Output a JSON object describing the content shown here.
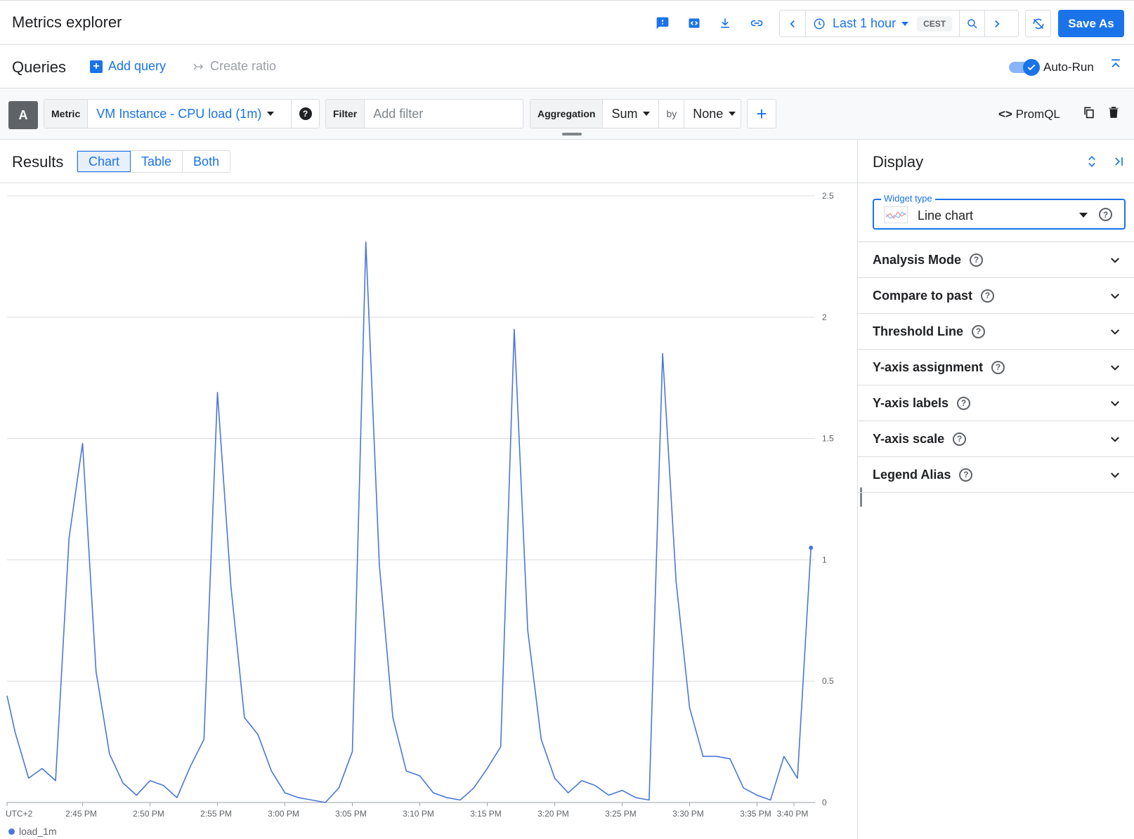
{
  "app": {
    "title": "Metrics explorer"
  },
  "toolbar": {
    "time_range": "Last 1 hour",
    "timezone": "CEST",
    "save_label": "Save As"
  },
  "queries": {
    "title": "Queries",
    "add_query": "Add query",
    "create_ratio": "Create ratio",
    "autorun_label": "Auto-Run",
    "autorun_on": true
  },
  "query": {
    "letter": "A",
    "metric_label": "Metric",
    "metric_value": "VM Instance - CPU load (1m)",
    "help": "?",
    "filter_label": "Filter",
    "filter_placeholder": "Add filter",
    "aggregation_label": "Aggregation",
    "aggregation_value": "Sum",
    "by_label": "by",
    "by_value": "None",
    "promql_label": "PromQL"
  },
  "results": {
    "title": "Results",
    "tabs": [
      "Chart",
      "Table",
      "Both"
    ],
    "active_tab": "Chart"
  },
  "display": {
    "title": "Display",
    "widget_type_label": "Widget type",
    "widget_type_value": "Line chart",
    "sections": [
      "Analysis Mode",
      "Compare to past",
      "Threshold Line",
      "Y-axis assignment",
      "Y-axis labels",
      "Y-axis scale",
      "Legend Alias"
    ]
  },
  "colors": {
    "accent": "#1a73e8",
    "series": "#4a76d9"
  },
  "chart_data": {
    "type": "line",
    "x_tick_labels": [
      "UTC+2",
      "2:45 PM",
      "2:50 PM",
      "2:55 PM",
      "3:00 PM",
      "3:05 PM",
      "3:10 PM",
      "3:15 PM",
      "3:20 PM",
      "3:25 PM",
      "3:30 PM",
      "3:35 PM",
      "3:40 PM"
    ],
    "y_ticks": [
      0,
      0.5,
      1,
      1.5,
      2,
      2.5
    ],
    "ylim": [
      0,
      2.5
    ],
    "xlim": [
      -15.6,
      44.3
    ],
    "y_axis_side": "right",
    "grid": true,
    "legend_placement": "bottom-left",
    "series": [
      {
        "name": "load_1m",
        "x": [
          -15.6,
          -15,
          -14,
          -13,
          -12,
          -11,
          -10,
          -9,
          -8,
          -7,
          -6,
          -5,
          -4,
          -3,
          -2,
          -1,
          0,
          1,
          2,
          3,
          -0.01,
          4,
          5,
          6,
          7,
          8,
          9,
          10,
          11,
          12,
          13,
          14,
          15,
          16,
          17,
          18,
          19,
          20,
          21,
          22,
          23,
          24,
          25,
          26,
          27,
          28,
          29,
          30,
          31,
          32,
          33,
          34,
          35,
          36,
          37,
          38,
          39,
          40,
          41,
          42,
          43,
          44
        ],
        "y": [
          0.44,
          0.29,
          0.1,
          0.14,
          0.09,
          1.09,
          1.48,
          0.54,
          0.2,
          0.08,
          0.03,
          0.09,
          0.07,
          0.02,
          0.15,
          0.26,
          1.69,
          0.89,
          0.35,
          0.28,
          0.28,
          0.13,
          0.04,
          0.02,
          0.01,
          0.0,
          0.06,
          0.21,
          2.31,
          0.98,
          0.35,
          0.13,
          0.11,
          0.04,
          0.02,
          0.01,
          0.06,
          0.14,
          0.23,
          1.95,
          0.71,
          0.26,
          0.1,
          0.04,
          0.09,
          0.07,
          0.03,
          0.05,
          0.02,
          0.01,
          1.85,
          0.91,
          0.39,
          0.19,
          0.19,
          0.18,
          0.06,
          0.03,
          0.01,
          0.19,
          0.1,
          1.05
        ]
      }
    ]
  }
}
